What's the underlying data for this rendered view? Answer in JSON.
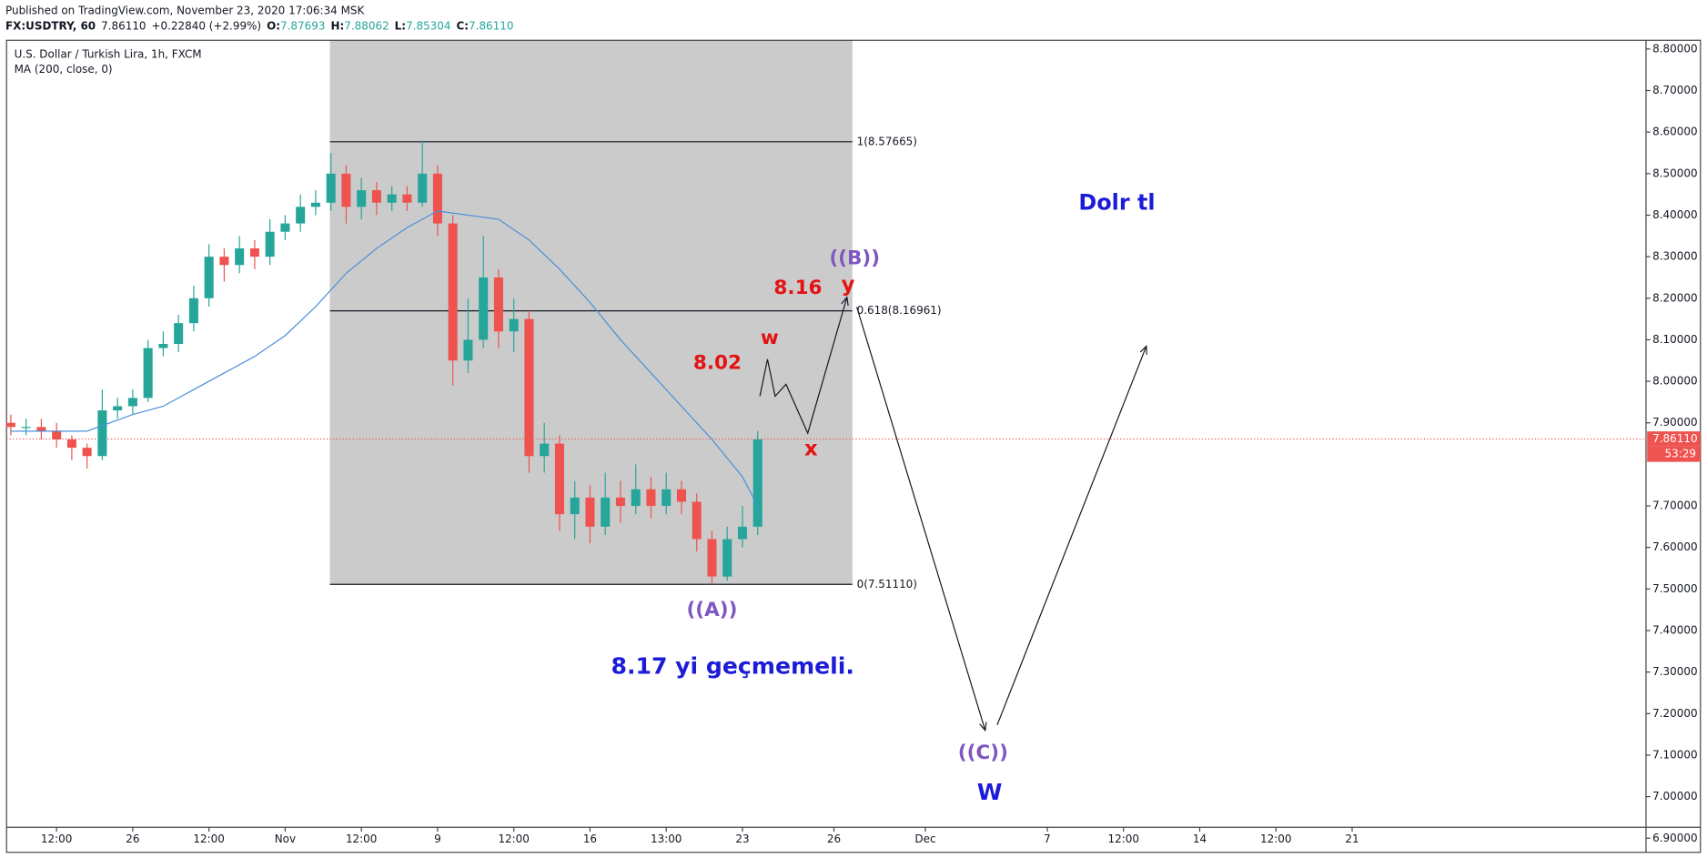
{
  "header": {
    "published": "Published on TradingView.com, November 23, 2020 17:06:34 MSK",
    "symbol": "FX:USDTRY, 60",
    "last": "7.86110",
    "change": "+0.22840 (+2.99%)",
    "ohlc": [
      {
        "key": "O:",
        "value": "7.87693"
      },
      {
        "key": "H:",
        "value": "7.88062"
      },
      {
        "key": "L:",
        "value": "7.85304"
      },
      {
        "key": "C:",
        "value": "7.86110"
      }
    ]
  },
  "chart_data": {
    "type": "candlestick",
    "title": "U.S. Dollar / Turkish Lira, 1h, FXCM",
    "up_color": "#26a69a",
    "down_color": "#ef5350",
    "x": [
      -4,
      -3.5,
      -3,
      -2.5,
      -2,
      -1.5,
      -1,
      -0.5,
      0,
      0.5,
      1,
      1.5,
      2,
      2.5,
      3,
      3.5,
      4,
      4.5,
      5,
      5.5,
      6,
      6.5,
      7,
      7.5,
      8,
      8.5,
      9,
      9.5,
      10,
      10.5,
      11,
      11.5,
      12,
      12.5,
      13,
      13.5,
      14,
      14.5,
      15,
      15.5,
      16,
      16.5,
      17,
      17.5,
      18,
      18.5,
      19,
      19.5,
      20,
      20.5
    ],
    "open": [
      7.9,
      7.89,
      7.89,
      7.88,
      7.86,
      7.84,
      7.82,
      7.93,
      7.94,
      7.96,
      8.08,
      8.09,
      8.14,
      8.2,
      8.3,
      8.28,
      8.32,
      8.3,
      8.36,
      8.38,
      8.42,
      8.43,
      8.5,
      8.42,
      8.46,
      8.43,
      8.45,
      8.43,
      8.5,
      8.38,
      8.05,
      8.1,
      8.25,
      8.12,
      8.15,
      7.82,
      7.85,
      7.68,
      7.72,
      7.65,
      7.72,
      7.7,
      7.74,
      7.7,
      7.74,
      7.71,
      7.62,
      7.53,
      7.62,
      7.65
    ],
    "high": [
      7.92,
      7.91,
      7.91,
      7.9,
      7.87,
      7.85,
      7.98,
      7.96,
      7.98,
      8.1,
      8.12,
      8.16,
      8.23,
      8.33,
      8.32,
      8.35,
      8.34,
      8.39,
      8.4,
      8.45,
      8.46,
      8.55,
      8.52,
      8.49,
      8.48,
      8.47,
      8.47,
      8.58,
      8.52,
      8.4,
      8.2,
      8.35,
      8.27,
      8.2,
      8.17,
      7.9,
      7.87,
      7.76,
      7.75,
      7.78,
      7.76,
      7.8,
      7.77,
      7.78,
      7.76,
      7.73,
      7.64,
      7.65,
      7.7,
      7.88
    ],
    "low": [
      7.87,
      7.87,
      7.86,
      7.84,
      7.81,
      7.79,
      7.81,
      7.91,
      7.92,
      7.95,
      8.06,
      8.07,
      8.12,
      8.18,
      8.24,
      8.26,
      8.27,
      8.28,
      8.34,
      8.36,
      8.4,
      8.41,
      8.38,
      8.39,
      8.4,
      8.41,
      8.41,
      8.42,
      8.35,
      7.99,
      8.02,
      8.08,
      8.08,
      8.07,
      7.78,
      7.78,
      7.64,
      7.62,
      7.61,
      7.63,
      7.66,
      7.68,
      7.67,
      7.68,
      7.68,
      7.59,
      7.511,
      7.52,
      7.6,
      7.63
    ],
    "close": [
      7.89,
      7.89,
      7.88,
      7.86,
      7.84,
      7.82,
      7.93,
      7.94,
      7.96,
      8.08,
      8.09,
      8.14,
      8.2,
      8.3,
      8.28,
      8.32,
      8.3,
      8.36,
      8.38,
      8.42,
      8.43,
      8.5,
      8.42,
      8.46,
      8.43,
      8.45,
      8.43,
      8.5,
      8.38,
      8.05,
      8.1,
      8.25,
      8.12,
      8.15,
      7.82,
      7.85,
      7.68,
      7.72,
      7.65,
      7.72,
      7.7,
      7.74,
      7.7,
      7.74,
      7.71,
      7.62,
      7.53,
      7.62,
      7.65,
      7.86
    ],
    "ma": {
      "name": "MA (200, close, 0)",
      "color": "#4a90d9",
      "x": [
        -4,
        -1.5,
        0,
        1,
        2,
        3,
        4,
        5,
        6,
        7,
        8,
        9,
        10,
        11,
        12,
        13,
        14,
        15,
        16,
        17,
        18,
        19,
        20,
        20.5
      ],
      "values": [
        7.88,
        7.88,
        7.92,
        7.94,
        7.98,
        8.02,
        8.06,
        8.11,
        8.18,
        8.26,
        8.32,
        8.37,
        8.41,
        8.4,
        8.39,
        8.34,
        8.27,
        8.19,
        8.1,
        8.02,
        7.94,
        7.86,
        7.77,
        7.7
      ]
    },
    "xlim": [
      -4.14,
      49.64
    ],
    "xticks": [
      {
        "value": -2.5,
        "label": "12:00"
      },
      {
        "value": 0,
        "label": "26"
      },
      {
        "value": 2.5,
        "label": "12:00"
      },
      {
        "value": 5,
        "label": "Nov"
      },
      {
        "value": 7.5,
        "label": "12:00"
      },
      {
        "value": 10,
        "label": "9"
      },
      {
        "value": 12.5,
        "label": "12:00"
      },
      {
        "value": 15,
        "label": "16"
      },
      {
        "value": 17.5,
        "label": "13:00"
      },
      {
        "value": 20,
        "label": "23"
      },
      {
        "value": 23,
        "label": "26"
      },
      {
        "value": 26,
        "label": "Dec"
      },
      {
        "value": 30,
        "label": "7"
      },
      {
        "value": 32.5,
        "label": "12:00"
      },
      {
        "value": 35,
        "label": "14"
      },
      {
        "value": 37.5,
        "label": "12:00"
      },
      {
        "value": 40,
        "label": "21"
      }
    ],
    "ylim": [
      6.866,
      8.821
    ],
    "yticks": [
      {
        "value": 6.9,
        "label": "6.90000"
      },
      {
        "value": 7.0,
        "label": "7.00000"
      },
      {
        "value": 7.1,
        "label": "7.10000"
      },
      {
        "value": 7.2,
        "label": "7.20000"
      },
      {
        "value": 7.3,
        "label": "7.30000"
      },
      {
        "value": 7.4,
        "label": "7.40000"
      },
      {
        "value": 7.5,
        "label": "7.50000"
      },
      {
        "value": 7.6,
        "label": "7.60000"
      },
      {
        "value": 7.7,
        "label": "7.70000"
      },
      {
        "value": 7.9,
        "label": "7.90000"
      },
      {
        "value": 8.0,
        "label": "8.00000"
      },
      {
        "value": 8.1,
        "label": "8.10000"
      },
      {
        "value": 8.2,
        "label": "8.20000"
      },
      {
        "value": 8.3,
        "label": "8.30000"
      },
      {
        "value": 8.4,
        "label": "8.40000"
      },
      {
        "value": 8.5,
        "label": "8.50000"
      },
      {
        "value": 8.6,
        "label": "8.60000"
      },
      {
        "value": 8.7,
        "label": "8.70000"
      },
      {
        "value": 8.8,
        "label": "8.80000"
      }
    ],
    "last_price": {
      "value": 7.8611,
      "label": "7.86110"
    },
    "countdown": "53:29",
    "fib_levels": [
      {
        "value": 8.57665,
        "label": "1(8.57665)"
      },
      {
        "value": 8.16961,
        "label": "0.618(8.16961)"
      },
      {
        "value": 7.5111,
        "label": "0(7.51110)"
      }
    ],
    "annotations": [
      {
        "text": "Dolr tl",
        "color": "#1c1cd8"
      },
      {
        "text": "((B))",
        "color": "#7e57c2"
      },
      {
        "text": "8.16",
        "color": "#e31313"
      },
      {
        "text": "y",
        "color": "#e31313"
      },
      {
        "text": "w",
        "color": "#e31313"
      },
      {
        "text": "8.02",
        "color": "#e31313"
      },
      {
        "text": "x",
        "color": "#e31313"
      },
      {
        "text": "((A))",
        "color": "#7e57c2"
      },
      {
        "text": "8.17 yi geçmemeli.",
        "color": "#1c1cd8"
      },
      {
        "text": "((C))",
        "color": "#7e57c2"
      },
      {
        "text": "W",
        "color": "#1c1cd8"
      }
    ]
  }
}
